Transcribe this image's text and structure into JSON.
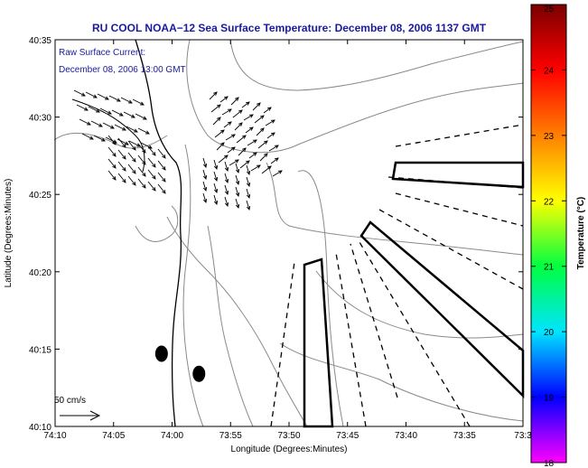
{
  "colors": {
    "title": "#1a1aa0",
    "annotation": "#1a1aa0",
    "contour": "#8a8a8a",
    "coastline": "#000000"
  },
  "chart_data": {
    "type": "map",
    "title": "RU COOL  NOAA−12  Sea Surface Temperature:  December 08, 2006 1137 GMT",
    "xlabel": "Longitude (Degrees:Minutes)",
    "ylabel": "Latitude (Degrees:Minutes)",
    "x_ticks": [
      "74:10",
      "74:05",
      "74:00",
      "73:55",
      "73:50",
      "73:45",
      "73:40",
      "73:35",
      "73:3"
    ],
    "y_ticks": [
      "40:35",
      "40:30",
      "40:25",
      "40:20",
      "40:15",
      "40:10"
    ],
    "xlim_minutes_west_of_74": [
      10,
      -30
    ],
    "ylim_minutes_north_of_40": [
      10,
      35
    ],
    "annotation_line1": "Raw Surface Current:",
    "annotation_line2": "December 08, 2006 13:00 GMT",
    "scale_label": "50 cm/s",
    "colorbar": {
      "label": "Temperature (°C)",
      "min": 18,
      "max": 25,
      "ticks": [
        "25",
        "24",
        "23",
        "22",
        "21",
        "20",
        "19",
        "18"
      ],
      "colors": [
        "#ff00ff",
        "#0000ff",
        "#00e5ff",
        "#00ff40",
        "#ffff00",
        "#ff8000",
        "#ff0000",
        "#7a0000"
      ]
    },
    "markers": [
      {
        "name": "marker-a",
        "lon_min": 0.9,
        "lat_min": 14.7
      },
      {
        "name": "marker-b",
        "lon_min": -2.3,
        "lat_min": 13.4
      }
    ]
  }
}
